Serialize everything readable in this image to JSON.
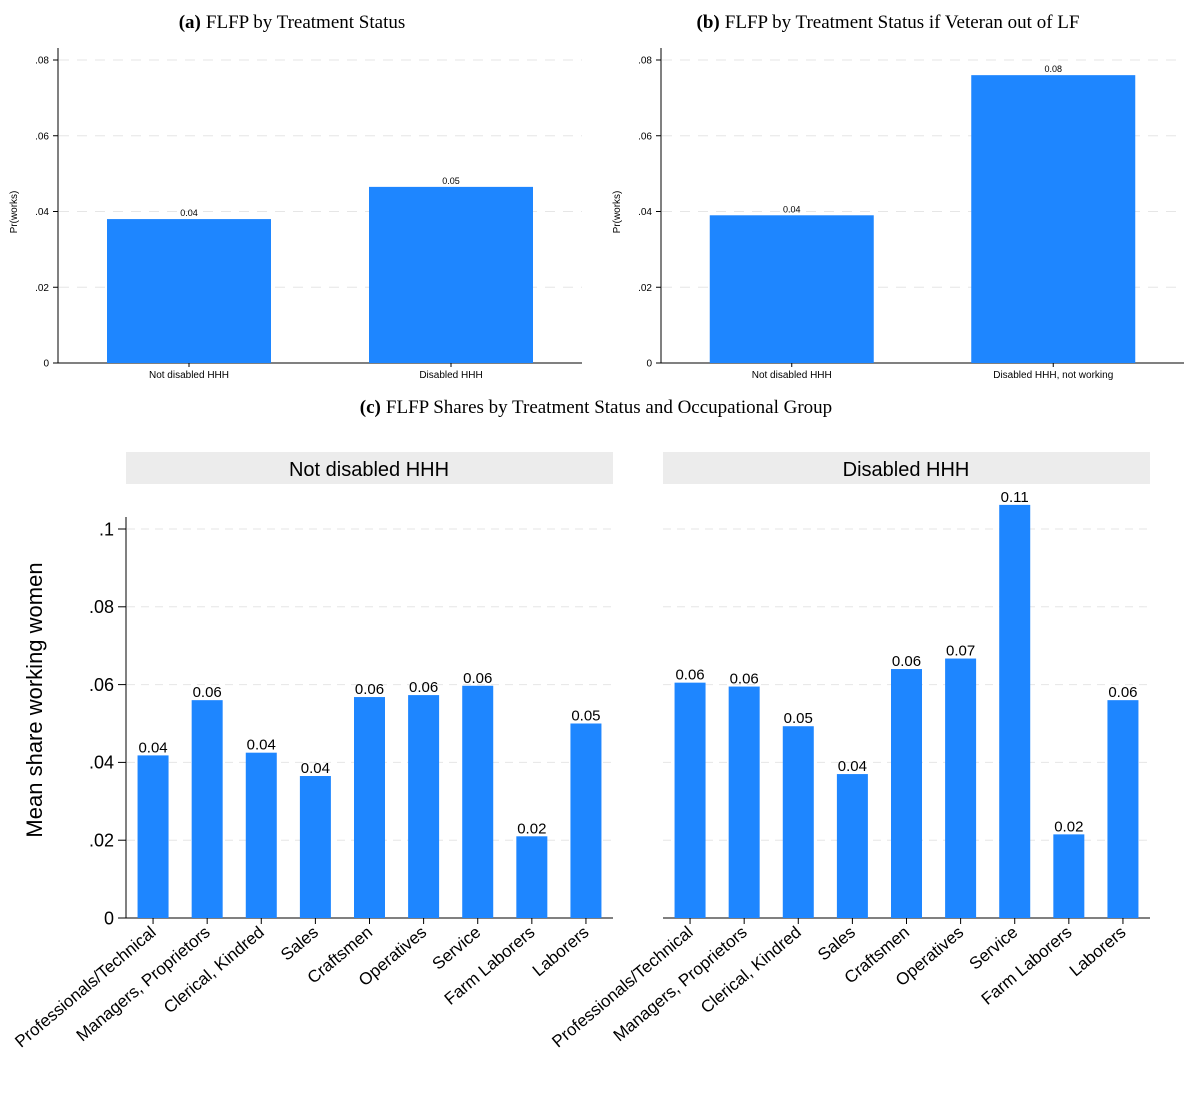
{
  "colors": {
    "bar": "#1e86ff",
    "axis": "#000000",
    "grid": "#e6e6e6",
    "strip_bg": "#ececec",
    "text": "#000000"
  },
  "panel_a": {
    "label": "(a)",
    "title": "FLFP by Treatment Status",
    "ylabel": "Pr(works)",
    "y_ticks": [
      "0",
      ".02",
      ".04",
      ".06",
      ".08"
    ],
    "y_tick_values": [
      0,
      0.02,
      0.04,
      0.06,
      0.08
    ]
  },
  "panel_b": {
    "label": "(b)",
    "title": "FLFP by Treatment Status if Veteran out of LF",
    "ylabel": "Pr(works)",
    "y_ticks": [
      "0",
      ".02",
      ".04",
      ".06",
      ".08"
    ],
    "y_tick_values": [
      0,
      0.02,
      0.04,
      0.06,
      0.08
    ]
  },
  "panel_c": {
    "label": "(c)",
    "title": "FLFP Shares by Treatment Status and Occupational Group",
    "ylabel": "Mean share working women",
    "y_ticks": [
      "0",
      ".02",
      ".04",
      ".06",
      ".08",
      ".1"
    ],
    "y_tick_values": [
      0,
      0.02,
      0.04,
      0.06,
      0.08,
      0.1
    ]
  },
  "chart_data": [
    {
      "type": "bar",
      "title": "FLFP by Treatment Status",
      "ylabel": "Pr(works)",
      "ylim": [
        0,
        0.08
      ],
      "categories": [
        "Not disabled HHH",
        "Disabled HHH"
      ],
      "values": [
        0.038,
        0.0465
      ],
      "data_labels": [
        "0.04",
        "0.05"
      ]
    },
    {
      "type": "bar",
      "title": "FLFP by Treatment Status if Veteran out of LF",
      "ylabel": "Pr(works)",
      "ylim": [
        0,
        0.08
      ],
      "categories": [
        "Not disabled HHH",
        "Disabled HHH, not working"
      ],
      "values": [
        0.039,
        0.076
      ],
      "data_labels": [
        "0.04",
        "0.08"
      ]
    },
    {
      "type": "bar",
      "title": "FLFP Shares by Treatment Status and Occupational Group",
      "ylabel": "Mean share working women",
      "ylim": [
        0,
        0.1
      ],
      "categories": [
        "Professionals/Technical",
        "Managers, Proprietors",
        "Clerical, Kindred",
        "Sales",
        "Craftsmen",
        "Operatives",
        "Service",
        "Farm Laborers",
        "Laborers"
      ],
      "facets": [
        {
          "name": "Not disabled HHH",
          "values": [
            0.0418,
            0.056,
            0.0425,
            0.0365,
            0.0568,
            0.0573,
            0.0597,
            0.021,
            0.05
          ],
          "data_labels": [
            "0.04",
            "0.06",
            "0.04",
            "0.04",
            "0.06",
            "0.06",
            "0.06",
            "0.02",
            "0.05"
          ]
        },
        {
          "name": "Disabled HHH",
          "values": [
            0.0605,
            0.0595,
            0.0493,
            0.037,
            0.064,
            0.0667,
            0.1062,
            0.0215,
            0.056
          ],
          "data_labels": [
            "0.06",
            "0.06",
            "0.05",
            "0.04",
            "0.06",
            "0.07",
            "0.11",
            "0.02",
            "0.06"
          ]
        }
      ]
    }
  ]
}
